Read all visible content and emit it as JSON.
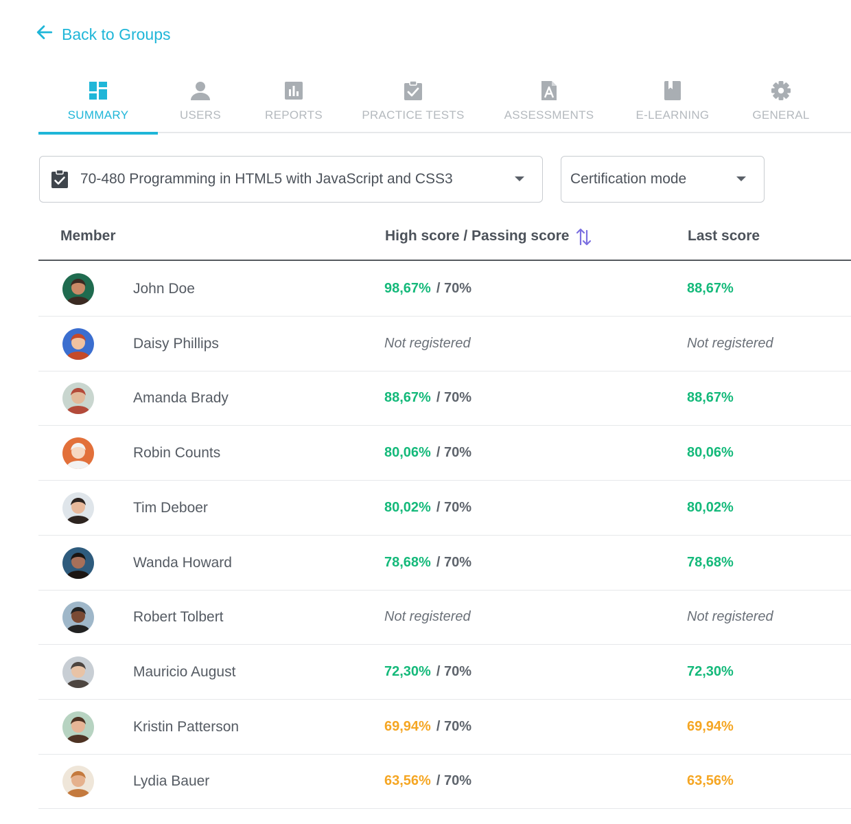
{
  "back_link": {
    "label": "Back to Groups",
    "icon": "arrow-left-icon",
    "color": "#1fb6d8"
  },
  "tabs": [
    {
      "label": "SUMMARY",
      "icon": "dashboard-icon",
      "active": true
    },
    {
      "label": "USERS",
      "icon": "user-icon",
      "active": false
    },
    {
      "label": "REPORTS",
      "icon": "bar-chart-icon",
      "active": false
    },
    {
      "label": "PRACTICE TESTS",
      "icon": "clipboard-check-icon",
      "active": false
    },
    {
      "label": "ASSESSMENTS",
      "icon": "document-a-icon",
      "active": false
    },
    {
      "label": "E-LEARNING",
      "icon": "book-icon",
      "active": false
    },
    {
      "label": "GENERAL",
      "icon": "gear-icon",
      "active": false
    }
  ],
  "filters": {
    "exam": {
      "value": "70-480 Programming in HTML5 with JavaScript and CSS3",
      "icon": "clipboard-check-icon"
    },
    "mode": {
      "value": "Certification mode"
    }
  },
  "table": {
    "headers": {
      "member": "Member",
      "score": "High score / Passing score",
      "last": "Last score"
    },
    "sort_icon": "sort-arrows-icon",
    "rows": [
      {
        "name": "John Doe",
        "high": "98,67%",
        "pass": "/ 70%",
        "last": "88,67%",
        "status": "pass"
      },
      {
        "name": "Daisy Phillips",
        "high": "Not registered",
        "pass": "",
        "last": "Not registered",
        "status": "none"
      },
      {
        "name": "Amanda Brady",
        "high": "88,67%",
        "pass": "/ 70%",
        "last": "88,67%",
        "status": "pass"
      },
      {
        "name": "Robin Counts",
        "high": "80,06%",
        "pass": "/ 70%",
        "last": "80,06%",
        "status": "pass"
      },
      {
        "name": "Tim Deboer",
        "high": "80,02%",
        "pass": "/ 70%",
        "last": "80,02%",
        "status": "pass"
      },
      {
        "name": "Wanda Howard",
        "high": "78,68%",
        "pass": "/ 70%",
        "last": "78,68%",
        "status": "pass"
      },
      {
        "name": "Robert Tolbert",
        "high": "Not registered",
        "pass": "",
        "last": "Not registered",
        "status": "none"
      },
      {
        "name": "Mauricio August",
        "high": "72,30%",
        "pass": "/ 70%",
        "last": "72,30%",
        "status": "pass"
      },
      {
        "name": "Kristin Patterson",
        "high": "69,94%",
        "pass": "/ 70%",
        "last": "69,94%",
        "status": "fail"
      },
      {
        "name": "Lydia Bauer",
        "high": "63,56%",
        "pass": "/ 70%",
        "last": "63,56%",
        "status": "fail"
      }
    ]
  },
  "colors": {
    "accent": "#1fb6d8",
    "pass": "#14b97a",
    "fail": "#f5a623",
    "sort": "#7b6fe0"
  }
}
